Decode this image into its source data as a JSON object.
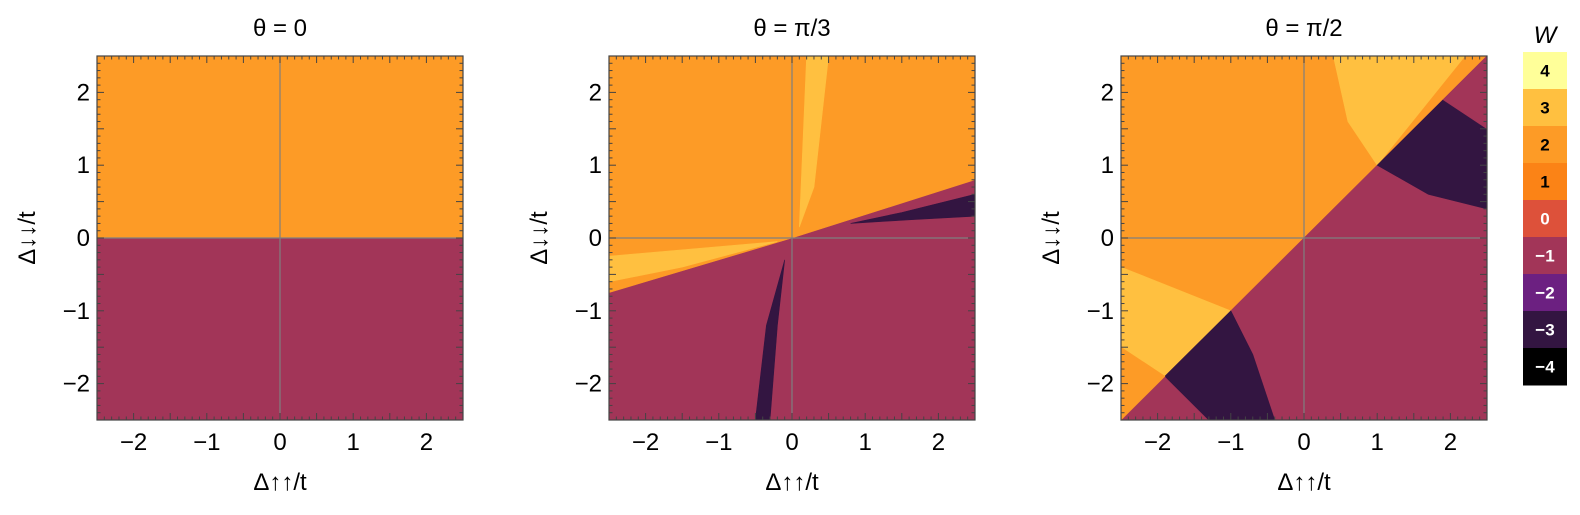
{
  "chart_data": [
    {
      "type": "heatmap",
      "title": "θ = 0",
      "xlabel": "Δ↑↑/t",
      "ylabel": "Δ↓↓/t",
      "xlim": [
        -2.5,
        2.5
      ],
      "ylim": [
        -2.5,
        2.5
      ],
      "x_ticks": [
        "−2",
        "−1",
        "0",
        "1",
        "2"
      ],
      "y_ticks": [
        "−2",
        "−1",
        "0",
        "1",
        "2"
      ],
      "regions": [
        {
          "W": 2,
          "polygon": [
            [
              -2.5,
              0
            ],
            [
              2.5,
              0
            ],
            [
              2.5,
              2.5
            ],
            [
              -2.5,
              2.5
            ]
          ]
        },
        {
          "W": -1,
          "polygon": [
            [
              -2.5,
              -2.5
            ],
            [
              2.5,
              -2.5
            ],
            [
              2.5,
              0
            ],
            [
              -2.5,
              0
            ]
          ]
        }
      ]
    },
    {
      "type": "heatmap",
      "title": "θ = π/3",
      "xlabel": "Δ↑↑/t",
      "ylabel": "Δ↓↓/t",
      "xlim": [
        -2.5,
        2.5
      ],
      "ylim": [
        -2.5,
        2.5
      ],
      "x_ticks": [
        "−2",
        "−1",
        "0",
        "1",
        "2"
      ],
      "y_ticks": [
        "−2",
        "−1",
        "0",
        "1",
        "2"
      ],
      "regions": [
        {
          "W": -1,
          "polygon": [
            [
              -2.5,
              -2.5
            ],
            [
              2.5,
              -2.5
            ],
            [
              2.5,
              0.8
            ],
            [
              0,
              0
            ],
            [
              -2.5,
              -0.75
            ]
          ]
        },
        {
          "W": 2,
          "polygon": [
            [
              -2.5,
              -0.75
            ],
            [
              0,
              0
            ],
            [
              2.5,
              0.8
            ],
            [
              2.5,
              2.5
            ],
            [
              -2.5,
              2.5
            ]
          ]
        },
        {
          "W": 3,
          "polygon": [
            [
              -2.5,
              -0.6
            ],
            [
              -1.5,
              -0.4
            ],
            [
              -0.2,
              -0.05
            ],
            [
              -2.5,
              -0.25
            ]
          ]
        },
        {
          "W": 3,
          "polygon": [
            [
              0.2,
              2.5
            ],
            [
              0.5,
              2.5
            ],
            [
              0.3,
              0.7
            ],
            [
              0.1,
              0.15
            ]
          ]
        },
        {
          "W": -3,
          "polygon": [
            [
              0.8,
              0.2
            ],
            [
              1.5,
              0.35
            ],
            [
              2.5,
              0.6
            ],
            [
              2.5,
              0.3
            ],
            [
              1.6,
              0.25
            ]
          ]
        },
        {
          "W": -3,
          "polygon": [
            [
              -0.5,
              -2.5
            ],
            [
              -0.3,
              -2.5
            ],
            [
              -0.2,
              -1.2
            ],
            [
              -0.1,
              -0.3
            ],
            [
              -0.35,
              -1.2
            ]
          ]
        }
      ]
    },
    {
      "type": "heatmap",
      "title": "θ = π/2",
      "xlabel": "Δ↑↑/t",
      "ylabel": "Δ↓↓/t",
      "xlim": [
        -2.5,
        2.5
      ],
      "ylim": [
        -2.5,
        2.5
      ],
      "x_ticks": [
        "−2",
        "−1",
        "0",
        "1",
        "2"
      ],
      "y_ticks": [
        "−2",
        "−1",
        "0",
        "1",
        "2"
      ],
      "regions": [
        {
          "W": 2,
          "polygon": [
            [
              -2.5,
              -2.5
            ],
            [
              2.5,
              2.5
            ],
            [
              -2.5,
              2.5
            ]
          ]
        },
        {
          "W": -1,
          "polygon": [
            [
              -2.5,
              -2.5
            ],
            [
              2.5,
              -2.5
            ],
            [
              2.5,
              2.5
            ]
          ]
        },
        {
          "W": 3,
          "polygon": [
            [
              0.4,
              2.5
            ],
            [
              2.2,
              2.5
            ],
            [
              1.0,
              1.0
            ],
            [
              0.6,
              1.6
            ]
          ]
        },
        {
          "W": -3,
          "polygon": [
            [
              1.0,
              1.0
            ],
            [
              1.9,
              1.9
            ],
            [
              2.5,
              1.5
            ],
            [
              2.5,
              0.4
            ],
            [
              1.7,
              0.6
            ]
          ]
        },
        {
          "W": 3,
          "polygon": [
            [
              -2.5,
              -0.4
            ],
            [
              -1.0,
              -1.0
            ],
            [
              -1.9,
              -1.9
            ],
            [
              -2.5,
              -1.5
            ]
          ]
        },
        {
          "W": -3,
          "polygon": [
            [
              -1.0,
              -1.0
            ],
            [
              -1.9,
              -1.9
            ],
            [
              -1.3,
              -2.5
            ],
            [
              -0.4,
              -2.5
            ],
            [
              -0.7,
              -1.6
            ]
          ]
        },
        {
          "W": 2,
          "polygon": [
            [
              -2.5,
              -1.5
            ],
            [
              -1.9,
              -1.9
            ],
            [
              -2.5,
              -2.5
            ]
          ]
        },
        {
          "W": -1,
          "polygon": [
            [
              1.9,
              1.9
            ],
            [
              2.5,
              2.5
            ],
            [
              2.5,
              1.5
            ]
          ]
        }
      ]
    }
  ],
  "colorbar": {
    "label": "W",
    "levels": [
      {
        "value": 4,
        "label": "4",
        "color": "#ffff99"
      },
      {
        "value": 3,
        "label": "3",
        "color": "#ffc040"
      },
      {
        "value": 2,
        "label": "2",
        "color": "#fd9b26"
      },
      {
        "value": 1,
        "label": "1",
        "color": "#fb8316"
      },
      {
        "value": 0,
        "label": "0",
        "color": "#dd513a"
      },
      {
        "value": -1,
        "label": "−1",
        "color": "#a23558"
      },
      {
        "value": -2,
        "label": "−2",
        "color": "#6c2081"
      },
      {
        "value": -3,
        "label": "−3",
        "color": "#331541"
      },
      {
        "value": -4,
        "label": "−4",
        "color": "#000000"
      }
    ],
    "text_colors": {
      "light": "#000000",
      "dark": "#ffffff"
    }
  }
}
